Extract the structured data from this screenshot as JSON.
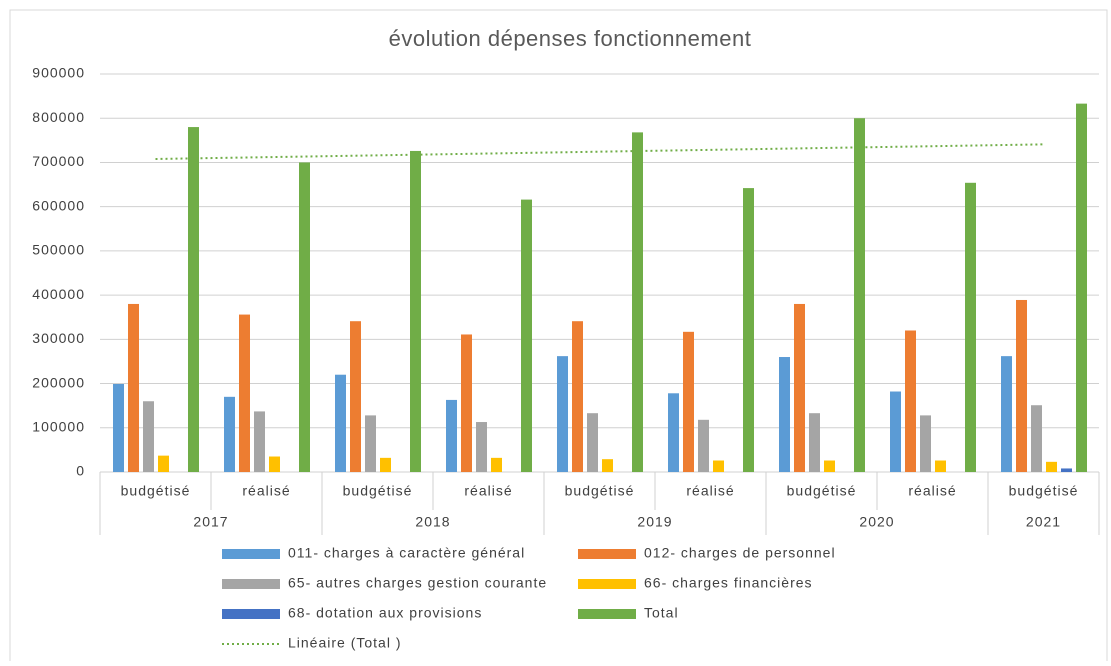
{
  "chart_data": {
    "type": "bar",
    "title": "évolution dépenses fonctionnement",
    "groups": [
      {
        "label": "2017",
        "categories": [
          "budgétisé",
          "réalisé"
        ]
      },
      {
        "label": "2018",
        "categories": [
          "budgétisé",
          "réalisé"
        ]
      },
      {
        "label": "2019",
        "categories": [
          "budgétisé",
          "réalisé"
        ]
      },
      {
        "label": "2020",
        "categories": [
          "budgétisé",
          "réalisé"
        ]
      },
      {
        "label": "2021",
        "categories": [
          "budgétisé"
        ]
      }
    ],
    "series": [
      {
        "name": "011- charges à caractère général",
        "color": "#5b9bd5",
        "values": [
          199000,
          170000,
          220000,
          163000,
          262000,
          178000,
          260000,
          182000,
          262000
        ]
      },
      {
        "name": "012- charges de personnel",
        "color": "#ed7d31",
        "values": [
          380000,
          356000,
          341000,
          311000,
          341000,
          317000,
          380000,
          320000,
          389000
        ]
      },
      {
        "name": "65- autres charges gestion courante",
        "color": "#a5a5a5",
        "values": [
          160000,
          137000,
          128000,
          113000,
          133000,
          118000,
          133000,
          128000,
          151000
        ]
      },
      {
        "name": "66- charges financières",
        "color": "#ffc000",
        "values": [
          37000,
          35000,
          32000,
          32000,
          29000,
          26000,
          26000,
          26000,
          23000
        ]
      },
      {
        "name": "68- dotation aux provisions",
        "color": "#4472c4",
        "values": [
          0,
          0,
          0,
          0,
          0,
          0,
          0,
          0,
          8000
        ]
      },
      {
        "name": "Total",
        "color": "#70ad47",
        "values": [
          780000,
          700000,
          726000,
          616000,
          768000,
          642000,
          800000,
          654000,
          833000
        ]
      }
    ],
    "trendline": {
      "name": "Linéaire (Total )",
      "series": 5,
      "color": "#70ad47"
    },
    "ylim": [
      0,
      900000
    ],
    "yticks": [
      0,
      100000,
      200000,
      300000,
      400000,
      500000,
      600000,
      700000,
      800000,
      900000
    ],
    "grid": true
  }
}
